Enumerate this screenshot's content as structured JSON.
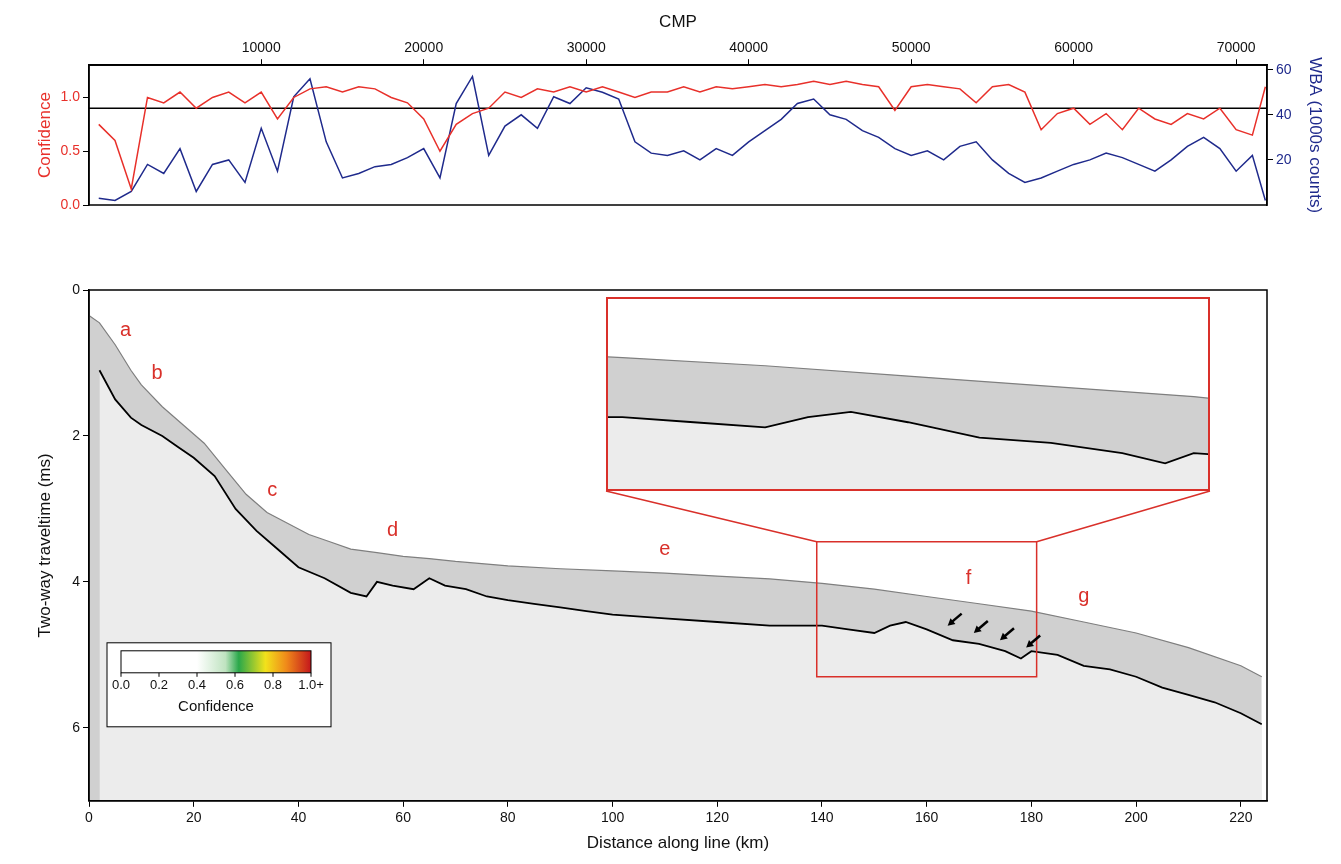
{
  "chart_data": [
    {
      "type": "line",
      "x_label": "CMP",
      "y_label": "Confidence",
      "y2_label": "WBA (1000s counts)",
      "xlim": [
        -600,
        71900
      ],
      "xticks": [
        10000,
        20000,
        30000,
        40000,
        50000,
        60000,
        70000
      ],
      "ylim": [
        0,
        1.3
      ],
      "yticks": [
        {
          "value": 0,
          "label": "0.0"
        },
        {
          "value": 0.5,
          "label": "0.5"
        },
        {
          "value": 1,
          "label": "1.0"
        }
      ],
      "y2lim": [
        0,
        62
      ],
      "y2ticks": [
        20,
        40,
        60
      ],
      "grid": false,
      "threshold": 0.9,
      "x": [
        0,
        1000,
        2000,
        3000,
        4000,
        5000,
        6000,
        7000,
        8000,
        9000,
        10000,
        11000,
        12000,
        13000,
        14000,
        15000,
        16000,
        17000,
        18000,
        19000,
        20000,
        21000,
        22000,
        23000,
        24000,
        25000,
        26000,
        27000,
        28000,
        29000,
        30000,
        31000,
        32000,
        33000,
        34000,
        35000,
        36000,
        37000,
        38000,
        39000,
        40000,
        41000,
        42000,
        43000,
        44000,
        45000,
        46000,
        47000,
        48000,
        49000,
        50000,
        51000,
        52000,
        53000,
        54000,
        55000,
        56000,
        57000,
        58000,
        59000,
        60000,
        61000,
        62000,
        63000,
        64000,
        65000,
        66000,
        67000,
        68000,
        69000,
        70000,
        71000,
        71800
      ],
      "series": [
        {
          "color": "#e8302a",
          "values": [
            0.75,
            0.6,
            0.15,
            1.0,
            0.95,
            1.05,
            0.9,
            1.0,
            1.05,
            0.95,
            1.05,
            0.8,
            1.0,
            1.08,
            1.1,
            1.05,
            1.1,
            1.08,
            1.0,
            0.95,
            0.8,
            0.5,
            0.75,
            0.85,
            0.9,
            1.05,
            1.0,
            1.08,
            1.05,
            1.1,
            1.05,
            1.1,
            1.05,
            1.0,
            1.05,
            1.05,
            1.1,
            1.05,
            1.1,
            1.08,
            1.1,
            1.12,
            1.1,
            1.12,
            1.15,
            1.12,
            1.15,
            1.12,
            1.1,
            0.88,
            1.1,
            1.12,
            1.1,
            1.08,
            0.95,
            1.1,
            1.12,
            1.05,
            0.7,
            0.85,
            0.9,
            0.75,
            0.85,
            0.7,
            0.9,
            0.8,
            0.75,
            0.85,
            0.8,
            0.9,
            0.7,
            0.65,
            1.1
          ]
        },
        {
          "color": "#1f2a8c",
          "axis": "y2",
          "values": [
            3,
            2,
            6,
            18,
            14,
            25,
            6,
            18,
            20,
            10,
            34,
            15,
            48,
            56,
            28,
            12,
            14,
            17,
            18,
            21,
            25,
            12,
            45,
            57,
            22,
            35,
            40,
            34,
            48,
            45,
            52,
            50,
            47,
            28,
            23,
            22,
            24,
            20,
            25,
            22,
            28,
            33,
            38,
            45,
            47,
            40,
            38,
            33,
            30,
            25,
            22,
            24,
            20,
            26,
            28,
            20,
            14,
            10,
            12,
            15,
            18,
            20,
            23,
            21,
            18,
            15,
            20,
            26,
            30,
            25,
            15,
            22,
            2
          ]
        }
      ]
    },
    {
      "type": "line",
      "x_label": "Distance along line (km)",
      "y_label": "Two-way traveltime (ms)",
      "xlim": [
        0,
        225
      ],
      "xticks": [
        0,
        20,
        40,
        60,
        80,
        100,
        120,
        140,
        160,
        180,
        200,
        220
      ],
      "ylim": [
        7,
        0
      ],
      "yticks": [
        0,
        2,
        4,
        6
      ],
      "grid": false,
      "series": [
        {
          "color": "#7f7f7f",
          "x": [
            0,
            2,
            5,
            8,
            10,
            14,
            18,
            22,
            26,
            30,
            34,
            38,
            42,
            46,
            50,
            55,
            60,
            65,
            70,
            75,
            80,
            90,
            100,
            110,
            120,
            130,
            140,
            150,
            160,
            170,
            180,
            190,
            200,
            210,
            220,
            224
          ],
          "values": [
            0.35,
            0.45,
            0.75,
            1.1,
            1.3,
            1.6,
            1.85,
            2.1,
            2.45,
            2.8,
            3.05,
            3.2,
            3.35,
            3.45,
            3.55,
            3.6,
            3.65,
            3.68,
            3.72,
            3.75,
            3.78,
            3.82,
            3.85,
            3.88,
            3.92,
            3.96,
            4.02,
            4.1,
            4.2,
            4.3,
            4.4,
            4.55,
            4.7,
            4.9,
            5.15,
            5.3
          ]
        },
        {
          "color": "#000000",
          "x": [
            2,
            5,
            8,
            10,
            14,
            17,
            20,
            24,
            28,
            32,
            36,
            40,
            45,
            50,
            53,
            55,
            58,
            62,
            65,
            68,
            72,
            76,
            80,
            85,
            90,
            95,
            100,
            110,
            120,
            130,
            140,
            145,
            150,
            153,
            156,
            160,
            165,
            170,
            175,
            178,
            180,
            185,
            190,
            195,
            200,
            205,
            210,
            215,
            220,
            224
          ],
          "values": [
            1.1,
            1.5,
            1.75,
            1.85,
            2.0,
            2.15,
            2.3,
            2.55,
            3.0,
            3.3,
            3.55,
            3.8,
            3.95,
            4.15,
            4.2,
            4.0,
            4.05,
            4.1,
            3.95,
            4.05,
            4.1,
            4.2,
            4.25,
            4.3,
            4.35,
            4.4,
            4.45,
            4.5,
            4.55,
            4.6,
            4.6,
            4.65,
            4.7,
            4.6,
            4.55,
            4.65,
            4.8,
            4.85,
            4.95,
            5.05,
            4.95,
            5.0,
            5.15,
            5.2,
            5.3,
            5.45,
            5.55,
            5.65,
            5.8,
            5.95
          ]
        }
      ],
      "annotations": [
        {
          "text": "a",
          "x": 7,
          "y": 0.55
        },
        {
          "text": "b",
          "x": 13,
          "y": 1.15
        },
        {
          "text": "c",
          "x": 35,
          "y": 2.75
        },
        {
          "text": "d",
          "x": 58,
          "y": 3.3
        },
        {
          "text": "e",
          "x": 110,
          "y": 3.55
        },
        {
          "text": "f",
          "x": 168,
          "y": 3.95
        },
        {
          "text": "g",
          "x": 190,
          "y": 4.2
        }
      ],
      "arrows": [
        {
          "x": 164,
          "y": 4.6
        },
        {
          "x": 169,
          "y": 4.7
        },
        {
          "x": 174,
          "y": 4.8
        },
        {
          "x": 179,
          "y": 4.9
        }
      ],
      "inset": {
        "xlim": [
          139,
          181
        ],
        "ylim": [
          5.3,
          3.45
        ]
      },
      "colorbar": {
        "label": "Confidence",
        "range": [
          0,
          1
        ],
        "ticks": [
          {
            "value": 0,
            "label": "0.0"
          },
          {
            "value": 0.2,
            "label": "0.2"
          },
          {
            "value": 0.4,
            "label": "0.4"
          },
          {
            "value": 0.6,
            "label": "0.6"
          },
          {
            "value": 0.8,
            "label": "0.8"
          },
          {
            "value": 1,
            "label": "1.0+"
          }
        ]
      }
    }
  ]
}
